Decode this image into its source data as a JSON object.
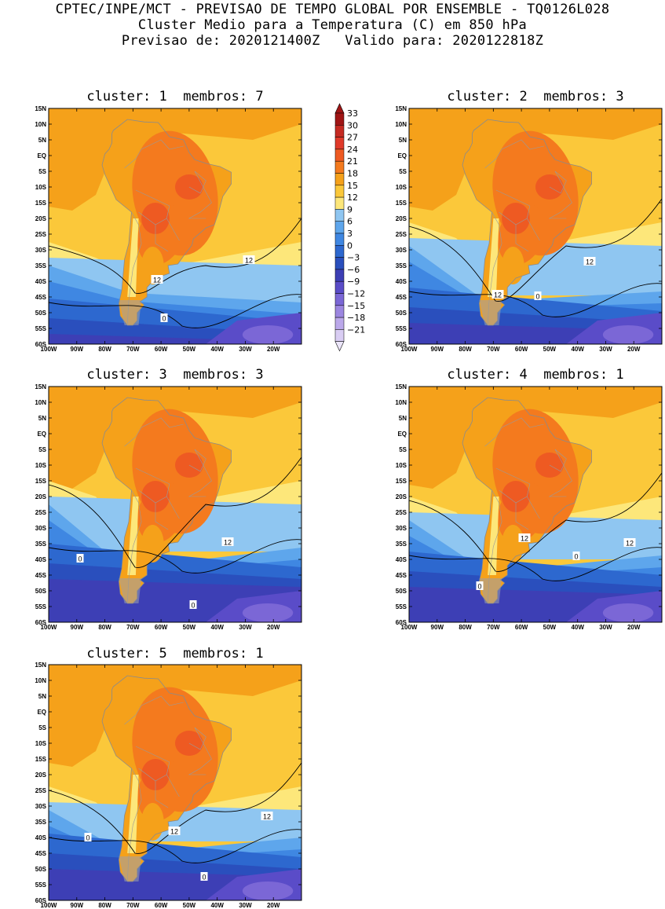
{
  "header": {
    "line1": "CPTEC/INPE/MCT - PREVISAO DE TEMPO GLOBAL POR ENSEMBLE - TQ0126L028",
    "line2": "Cluster Medio para a Temperatura (C) em 850 hPa",
    "line3": "Previsao de: 2020121400Z   Valido para: 2020122818Z"
  },
  "colorbar": {
    "levels": [
      "33",
      "30",
      "27",
      "24",
      "21",
      "18",
      "15",
      "12",
      "9",
      "6",
      "3",
      "0",
      "-3",
      "-6",
      "-9",
      "-12",
      "-15",
      "-18",
      "-21"
    ],
    "colors": [
      "#a01515",
      "#c52a22",
      "#e03a2a",
      "#ee5a22",
      "#f47a1e",
      "#f5a11a",
      "#fbc83a",
      "#fde77a",
      "#8fc6f1",
      "#5ea6ec",
      "#3f87e2",
      "#2d68cf",
      "#2a4fbd",
      "#3d3fb5",
      "#5a4cc8",
      "#7b67d6",
      "#9c86e0",
      "#bba8ea",
      "#d9cdf3"
    ]
  },
  "axes": {
    "lat_ticks": [
      "15N",
      "10N",
      "5N",
      "EQ",
      "5S",
      "10S",
      "15S",
      "20S",
      "25S",
      "30S",
      "35S",
      "40S",
      "45S",
      "50S",
      "55S",
      "60S"
    ],
    "lon_ticks": [
      "100W",
      "90W",
      "80W",
      "70W",
      "60W",
      "50W",
      "40W",
      "30W",
      "20W"
    ]
  },
  "panels": [
    {
      "title": "cluster: 1  membros: 7",
      "labels": [
        "12",
        "12",
        "0"
      ]
    },
    {
      "title": "cluster: 2  membros: 3",
      "labels": [
        "12",
        "12",
        "0"
      ]
    },
    {
      "title": "cluster: 3  membros: 3",
      "labels": [
        "12",
        "0",
        "0"
      ]
    },
    {
      "title": "cluster: 4  membros: 1",
      "labels": [
        "12",
        "12",
        "0",
        "0"
      ]
    },
    {
      "title": "cluster: 5  membros: 1",
      "labels": [
        "12",
        "12",
        "0",
        "0"
      ]
    }
  ]
}
